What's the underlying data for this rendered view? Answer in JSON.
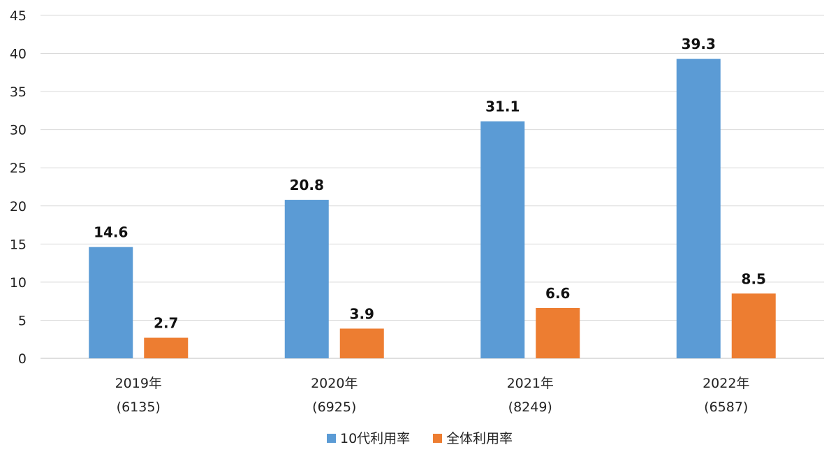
{
  "chart_data": {
    "type": "bar",
    "categories": [
      "2019年",
      "2020年",
      "2021年",
      "2022年"
    ],
    "category_sublabels": [
      "(6135)",
      "(6925)",
      "(8249)",
      "(6587)"
    ],
    "series": [
      {
        "name": "10代利用率",
        "color": "#5B9BD5",
        "values": [
          14.6,
          20.8,
          31.1,
          39.3
        ],
        "value_labels": [
          "14.6",
          "20.8",
          "31.1",
          "39.3"
        ]
      },
      {
        "name": "全体利用率",
        "color": "#ED7D31",
        "values": [
          2.7,
          3.9,
          6.6,
          8.5
        ],
        "value_labels": [
          "2.7",
          "3.9",
          "6.6",
          "8.5"
        ]
      }
    ],
    "ylim": [
      0,
      45
    ],
    "yticks": [
      "0",
      "5",
      "10",
      "15",
      "20",
      "25",
      "30",
      "35",
      "40",
      "45"
    ],
    "grid": true,
    "legend": "bottom-center",
    "title": "",
    "xlabel": "",
    "ylabel": ""
  }
}
